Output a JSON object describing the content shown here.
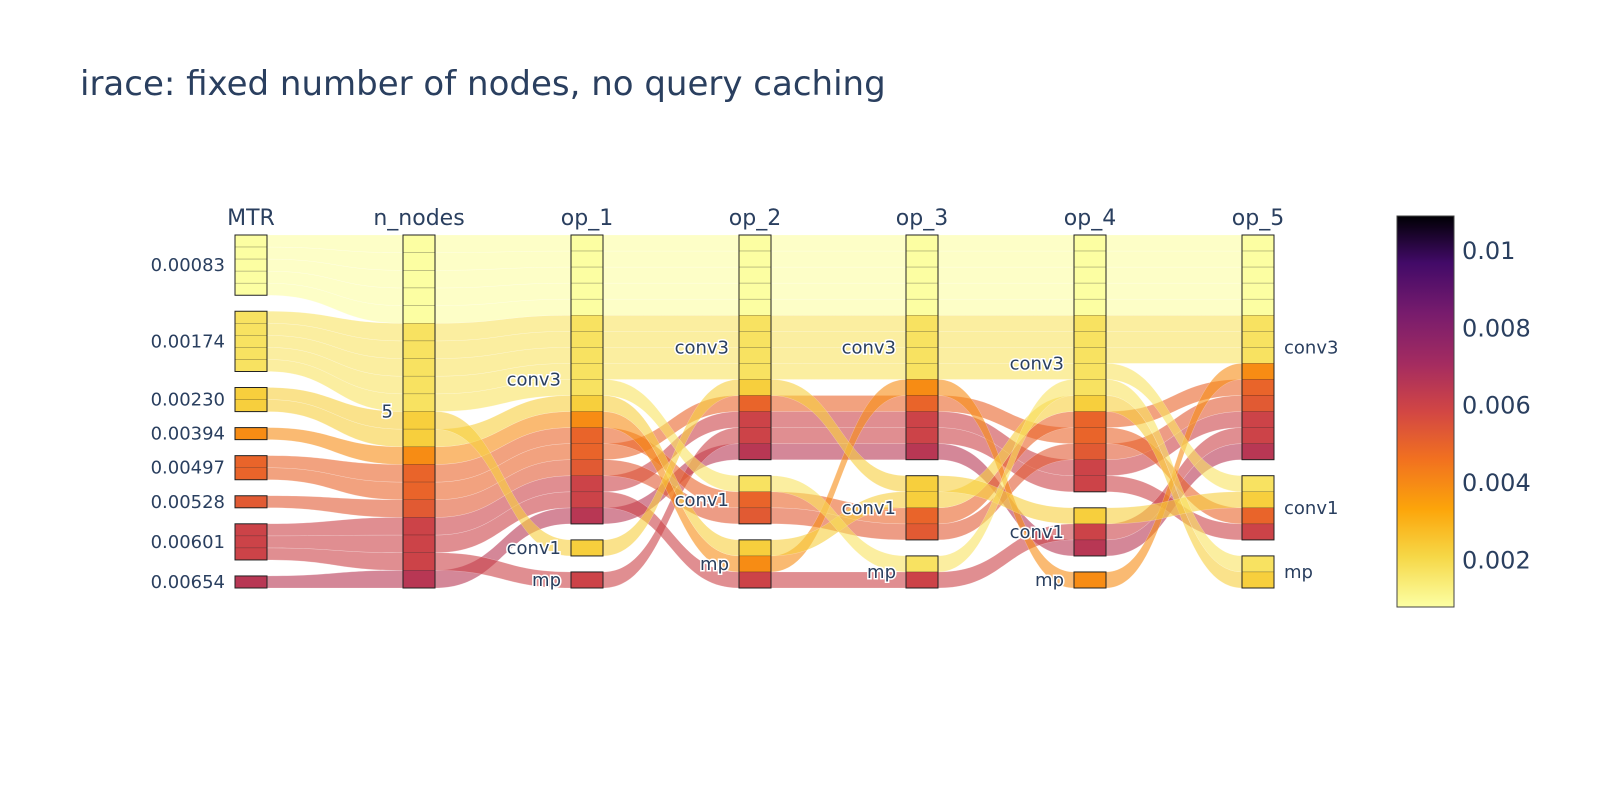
{
  "chart_data": {
    "type": "parallel-categories",
    "title": "irace: fixed number of nodes, no query caching",
    "dimensions": [
      {
        "name": "MTR",
        "categories": [
          "0.00083",
          "0.00174",
          "0.00230",
          "0.00394",
          "0.00497",
          "0.00528",
          "0.00601",
          "0.00654"
        ]
      },
      {
        "name": "n_nodes",
        "categories": [
          "5"
        ]
      },
      {
        "name": "op_1",
        "categories": [
          "conv3",
          "conv1",
          "mp"
        ]
      },
      {
        "name": "op_2",
        "categories": [
          "conv3",
          "conv1",
          "mp"
        ]
      },
      {
        "name": "op_3",
        "categories": [
          "conv3",
          "conv1",
          "mp"
        ]
      },
      {
        "name": "op_4",
        "categories": [
          "conv3",
          "conv1",
          "mp"
        ]
      },
      {
        "name": "op_5",
        "categories": [
          "conv3",
          "conv1",
          "mp"
        ]
      }
    ],
    "records": [
      {
        "MTR": 0.00083,
        "n_nodes": "5",
        "op_1": "conv3",
        "op_2": "conv3",
        "op_3": "conv3",
        "op_4": "conv3",
        "op_5": "conv3"
      },
      {
        "MTR": 0.00083,
        "n_nodes": "5",
        "op_1": "conv3",
        "op_2": "conv3",
        "op_3": "conv3",
        "op_4": "conv3",
        "op_5": "conv3"
      },
      {
        "MTR": 0.00083,
        "n_nodes": "5",
        "op_1": "conv3",
        "op_2": "conv3",
        "op_3": "conv3",
        "op_4": "conv3",
        "op_5": "conv3"
      },
      {
        "MTR": 0.00083,
        "n_nodes": "5",
        "op_1": "conv3",
        "op_2": "conv3",
        "op_3": "conv3",
        "op_4": "conv3",
        "op_5": "conv3"
      },
      {
        "MTR": 0.00083,
        "n_nodes": "5",
        "op_1": "conv3",
        "op_2": "conv3",
        "op_3": "conv3",
        "op_4": "conv3",
        "op_5": "conv3"
      },
      {
        "MTR": 0.00174,
        "n_nodes": "5",
        "op_1": "conv3",
        "op_2": "conv3",
        "op_3": "conv3",
        "op_4": "conv3",
        "op_5": "conv3"
      },
      {
        "MTR": 0.00174,
        "n_nodes": "5",
        "op_1": "conv3",
        "op_2": "conv3",
        "op_3": "conv3",
        "op_4": "conv3",
        "op_5": "conv3"
      },
      {
        "MTR": 0.00174,
        "n_nodes": "5",
        "op_1": "conv3",
        "op_2": "conv3",
        "op_3": "conv3",
        "op_4": "conv3",
        "op_5": "conv3"
      },
      {
        "MTR": 0.00174,
        "n_nodes": "5",
        "op_1": "conv3",
        "op_2": "conv3",
        "op_3": "conv3",
        "op_4": "conv3",
        "op_5": "conv1"
      },
      {
        "MTR": 0.00174,
        "n_nodes": "5",
        "op_1": "conv3",
        "op_2": "conv1",
        "op_3": "mp",
        "op_4": "conv3",
        "op_5": "mp"
      },
      {
        "MTR": 0.0023,
        "n_nodes": "5",
        "op_1": "conv1",
        "op_2": "conv3",
        "op_3": "conv1",
        "op_4": "conv1",
        "op_5": "conv1"
      },
      {
        "MTR": 0.0023,
        "n_nodes": "5",
        "op_1": "conv3",
        "op_2": "mp",
        "op_3": "conv1",
        "op_4": "conv3",
        "op_5": "mp"
      },
      {
        "MTR": 0.00394,
        "n_nodes": "5",
        "op_1": "conv3",
        "op_2": "mp",
        "op_3": "conv3",
        "op_4": "mp",
        "op_5": "conv3"
      },
      {
        "MTR": 0.00497,
        "n_nodes": "5",
        "op_1": "conv3",
        "op_2": "conv1",
        "op_3": "conv1",
        "op_4": "conv3",
        "op_5": "conv3"
      },
      {
        "MTR": 0.00497,
        "n_nodes": "5",
        "op_1": "conv3",
        "op_2": "conv3",
        "op_3": "conv3",
        "op_4": "conv3",
        "op_5": "conv1"
      },
      {
        "MTR": 0.00528,
        "n_nodes": "5",
        "op_1": "conv3",
        "op_2": "conv1",
        "op_3": "conv1",
        "op_4": "conv3",
        "op_5": "conv3"
      },
      {
        "MTR": 0.00601,
        "n_nodes": "5",
        "op_1": "conv3",
        "op_2": "conv3",
        "op_3": "conv3",
        "op_4": "conv3",
        "op_5": "conv3"
      },
      {
        "MTR": 0.00601,
        "n_nodes": "5",
        "op_1": "conv3",
        "op_2": "mp",
        "op_3": "mp",
        "op_4": "conv1",
        "op_5": "conv3"
      },
      {
        "MTR": 0.00601,
        "n_nodes": "5",
        "op_1": "mp",
        "op_2": "conv3",
        "op_3": "conv3",
        "op_4": "conv3",
        "op_5": "conv1"
      },
      {
        "MTR": 0.00654,
        "n_nodes": "5",
        "op_1": "conv3",
        "op_2": "conv3",
        "op_3": "conv3",
        "op_4": "conv1",
        "op_5": "conv3"
      }
    ],
    "colorscale": "Inferno (reversed)",
    "colorbar": {
      "tickvals": [
        0.002,
        0.004,
        0.006,
        0.008,
        0.01
      ],
      "ticktext": [
        "0.002",
        "0.004",
        "0.006",
        "0.008",
        "0.01"
      ],
      "range": [
        0.0008,
        0.0109
      ]
    }
  }
}
